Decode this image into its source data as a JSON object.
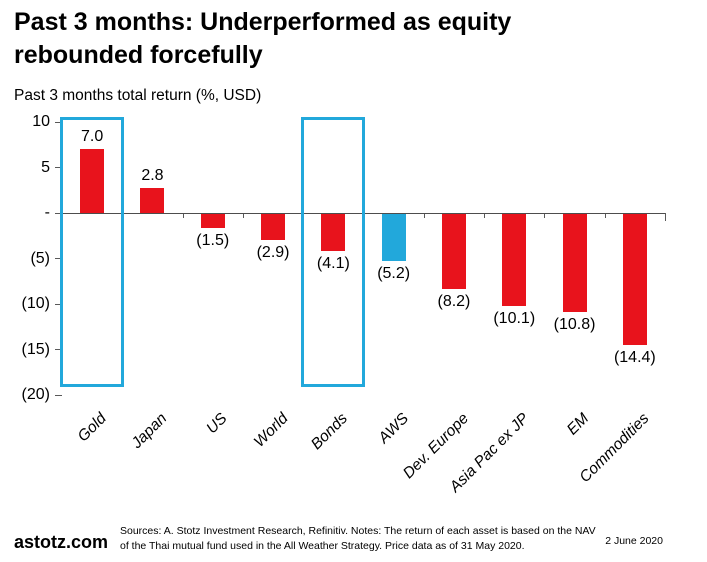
{
  "header": {
    "title_line1": "Past 3 months: Underperformed as equity",
    "title_line2": "rebounded forcefully",
    "subtitle": "Past 3 months total return (%, USD)"
  },
  "chart_data": {
    "type": "bar",
    "title": "Past 3 months total return (%, USD)",
    "categories": [
      "Gold",
      "Japan",
      "US",
      "World",
      "Bonds",
      "AWS",
      "Dev. Europe",
      "Asia Pac ex JP",
      "EM",
      "Commodities"
    ],
    "values": [
      7.0,
      2.8,
      -1.5,
      -2.9,
      -4.1,
      -5.2,
      -8.2,
      -10.1,
      -10.8,
      -14.4
    ],
    "value_labels": [
      "7.0",
      "2.8",
      "(1.5)",
      "(2.9)",
      "(4.1)",
      "(5.2)",
      "(8.2)",
      "(10.1)",
      "(10.8)",
      "(14.4)"
    ],
    "bar_colors": [
      "#e8131c",
      "#e8131c",
      "#e8131c",
      "#e8131c",
      "#e8131c",
      "#22a8db",
      "#e8131c",
      "#e8131c",
      "#e8131c",
      "#e8131c"
    ],
    "color_default": "#e8131c",
    "color_aws": "#22a8db",
    "highlight_box_color": "#22a8db",
    "highlighted_categories": [
      "Gold",
      "Bonds"
    ],
    "highlighted_indices": [
      0,
      4
    ],
    "ylim": [
      -20,
      10
    ],
    "yticks": [
      {
        "value": 10,
        "label": "10"
      },
      {
        "value": 5,
        "label": "5"
      },
      {
        "value": 0,
        "label": "-"
      },
      {
        "value": -5,
        "label": "(5)"
      },
      {
        "value": -10,
        "label": "(10)"
      },
      {
        "value": -15,
        "label": "(15)"
      },
      {
        "value": -20,
        "label": "(20)"
      }
    ],
    "grid": false,
    "legend": false,
    "xlabel": "",
    "ylabel": ""
  },
  "footer": {
    "brand": "astotz.com",
    "sources_line1": "Sources: A. Stotz Investment Research, Refinitiv. Notes: The return of each asset is based on the NAV of the Thai",
    "sources_line2": "mutual fund used in the All Weather Strategy. Price data as of 31 May 2020.",
    "date": "2 June 2020"
  }
}
